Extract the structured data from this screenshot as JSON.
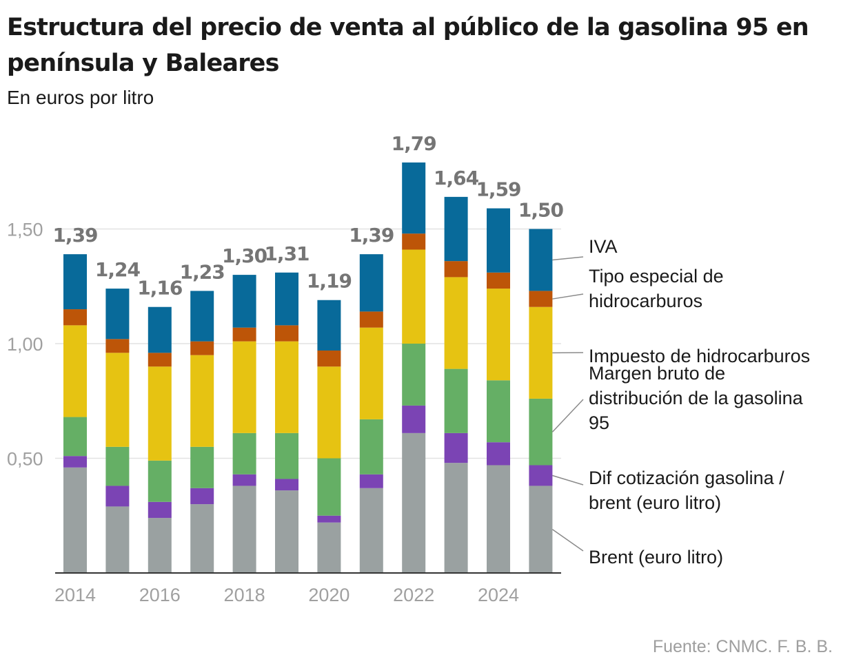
{
  "title": "Estructura del precio de venta al público de la gasolina 95 en península y Baleares",
  "subtitle": "En euros por litro",
  "source": "Fuente: CNMC. F. B. B.",
  "colors": {
    "brent": "#9aa1a1",
    "dif_cotizacion": "#7b44b4",
    "margen": "#65af65",
    "impuesto": "#e6c312",
    "tipo_especial": "#bd5508",
    "iva": "#086a9a",
    "total_label": "#757575",
    "axis_text": "#a0a0a0",
    "grid": "#e2e2e2"
  },
  "chart_data": {
    "type": "bar",
    "stacked": true,
    "title": "Estructura del precio de venta al público de la gasolina 95 en península y Baleares",
    "subtitle": "En euros por litro",
    "xlabel": "",
    "ylabel": "",
    "ylim": [
      0,
      1.8
    ],
    "yticks": [
      0.5,
      1.0,
      1.5
    ],
    "ytick_labels": [
      "0,50",
      "1,00",
      "1,50"
    ],
    "grid": true,
    "legend": "right",
    "categories": [
      "2014",
      "2015",
      "2016",
      "2017",
      "2018",
      "2019",
      "2020",
      "2021",
      "2022",
      "2023",
      "2024",
      "2025"
    ],
    "xtick_labels": [
      "2014",
      "",
      "2016",
      "",
      "2018",
      "",
      "2020",
      "",
      "2022",
      "",
      "2024",
      ""
    ],
    "totals": [
      1.39,
      1.24,
      1.16,
      1.23,
      1.3,
      1.31,
      1.19,
      1.39,
      1.79,
      1.64,
      1.59,
      1.5
    ],
    "total_labels": [
      "1,39",
      "1,24",
      "1,16",
      "1,23",
      "1,30",
      "1,31",
      "1,19",
      "1,39",
      "1,79",
      "1,64",
      "1,59",
      "1,50"
    ],
    "series": [
      {
        "key": "brent",
        "name": "Brent (euro litro)",
        "values": [
          0.46,
          0.29,
          0.24,
          0.3,
          0.38,
          0.36,
          0.22,
          0.37,
          0.61,
          0.48,
          0.47,
          0.38
        ]
      },
      {
        "key": "dif_cotizacion",
        "name": "Dif cotización gasolina / brent (euro litro)",
        "values": [
          0.05,
          0.09,
          0.07,
          0.07,
          0.05,
          0.05,
          0.03,
          0.06,
          0.12,
          0.13,
          0.1,
          0.09
        ]
      },
      {
        "key": "margen",
        "name": "Margen bruto de distribución de la gasolina 95",
        "values": [
          0.17,
          0.17,
          0.18,
          0.18,
          0.18,
          0.2,
          0.25,
          0.24,
          0.27,
          0.28,
          0.27,
          0.29
        ]
      },
      {
        "key": "impuesto",
        "name": "Impuesto de hidrocarburos",
        "values": [
          0.4,
          0.41,
          0.41,
          0.4,
          0.4,
          0.4,
          0.4,
          0.4,
          0.41,
          0.4,
          0.4,
          0.4
        ]
      },
      {
        "key": "tipo_especial",
        "name": "Tipo especial de hidrocarburos",
        "values": [
          0.07,
          0.06,
          0.06,
          0.06,
          0.06,
          0.07,
          0.07,
          0.07,
          0.07,
          0.07,
          0.07,
          0.07
        ]
      },
      {
        "key": "iva",
        "name": "IVA",
        "values": [
          0.24,
          0.22,
          0.2,
          0.22,
          0.23,
          0.23,
          0.22,
          0.25,
          0.31,
          0.28,
          0.28,
          0.27
        ]
      }
    ],
    "legend_labels": [
      {
        "key": "iva",
        "lines": [
          "IVA"
        ]
      },
      {
        "key": "tipo_especial",
        "lines": [
          "Tipo especial de",
          "hidrocarburos"
        ]
      },
      {
        "key": "impuesto",
        "lines": [
          "Impuesto de hidrocarburos"
        ]
      },
      {
        "key": "margen",
        "lines": [
          "Margen bruto de",
          "distribución de la gasolina",
          "95"
        ]
      },
      {
        "key": "dif_cotizacion",
        "lines": [
          "Dif cotización gasolina /",
          "brent (euro litro)"
        ]
      },
      {
        "key": "brent",
        "lines": [
          "Brent (euro litro)"
        ]
      }
    ]
  }
}
